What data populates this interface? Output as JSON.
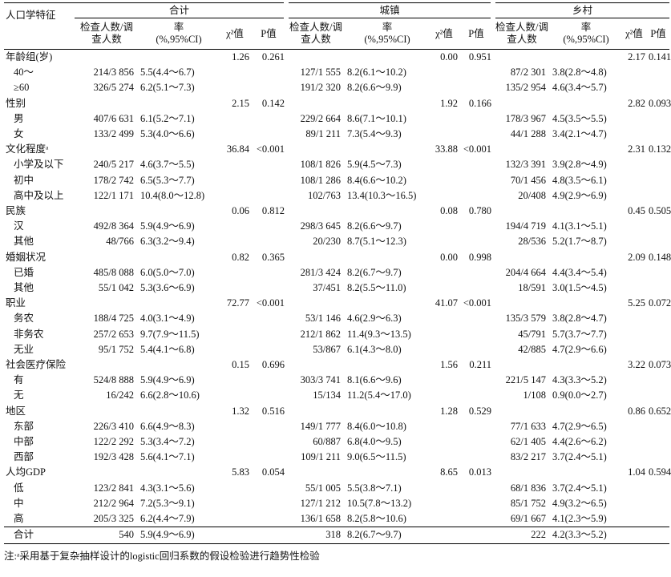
{
  "table": {
    "header": {
      "corner": "人口学特征",
      "groups": [
        "合计",
        "城镇",
        "乡村"
      ],
      "columns": [
        "检查人数/调查人数",
        [
          "率",
          "(%,95%CI)"
        ],
        "χ²值",
        "P值"
      ]
    },
    "rows": [
      [
        "年龄组(岁)",
        null,
        null,
        "1.26",
        "0.261",
        null,
        null,
        "0.00",
        "0.951",
        null,
        null,
        "2.17",
        "0.141"
      ],
      [
        "40～",
        "214/3 856",
        "5.5(4.4～6.7)",
        null,
        null,
        "127/1 555",
        "8.2(6.1～10.2)",
        null,
        null,
        "87/2 301",
        "3.8(2.8～4.8)",
        null,
        null
      ],
      [
        "≥60",
        "326/5 274",
        "6.2(5.1～7.3)",
        null,
        null,
        "191/2 320",
        "8.2(6.6～9.9)",
        null,
        null,
        "135/2 954",
        "4.6(3.4～5.7)",
        null,
        null
      ],
      [
        "性别",
        null,
        null,
        "2.15",
        "0.142",
        null,
        null,
        "1.92",
        "0.166",
        null,
        null,
        "2.82",
        "0.093"
      ],
      [
        "男",
        "407/6 631",
        "6.1(5.2～7.1)",
        null,
        null,
        "229/2 664",
        "8.6(7.1～10.1)",
        null,
        null,
        "178/3 967",
        "4.5(3.5～5.5)",
        null,
        null
      ],
      [
        "女",
        "133/2 499",
        "5.3(4.0～6.6)",
        null,
        null,
        "89/1 211",
        "7.3(5.4～9.3)",
        null,
        null,
        "44/1 288",
        "3.4(2.1～4.7)",
        null,
        null
      ],
      [
        "文化程度ᵃ",
        null,
        null,
        "36.84",
        "<0.001",
        null,
        null,
        "33.88",
        "<0.001",
        null,
        null,
        "2.31",
        "0.132"
      ],
      [
        "小学及以下",
        "240/5 217",
        "4.6(3.7～5.5)",
        null,
        null,
        "108/1 826",
        "5.9(4.5～7.3)",
        null,
        null,
        "132/3 391",
        "3.9(2.8～4.9)",
        null,
        null
      ],
      [
        "初中",
        "178/2 742",
        "6.5(5.3～7.7)",
        null,
        null,
        "108/1 286",
        "8.4(6.6～10.2)",
        null,
        null,
        "70/1 456",
        "4.8(3.5～6.1)",
        null,
        null
      ],
      [
        "高中及以上",
        "122/1 171",
        "10.4(8.0～12.8)",
        null,
        null,
        "102/763",
        "13.4(10.3～16.5)",
        null,
        null,
        "20/408",
        "4.9(2.9～6.9)",
        null,
        null
      ],
      [
        "民族",
        null,
        null,
        "0.06",
        "0.812",
        null,
        null,
        "0.08",
        "0.780",
        null,
        null,
        "0.45",
        "0.505"
      ],
      [
        "汉",
        "492/8 364",
        "5.9(4.9～6.9)",
        null,
        null,
        "298/3 645",
        "8.2(6.6～9.7)",
        null,
        null,
        "194/4 719",
        "4.1(3.1～5.1)",
        null,
        null
      ],
      [
        "其他",
        "48/766",
        "6.3(3.2～9.4)",
        null,
        null,
        "20/230",
        "8.7(5.1～12.3)",
        null,
        null,
        "28/536",
        "5.2(1.7～8.7)",
        null,
        null
      ],
      [
        "婚姻状况",
        null,
        null,
        "0.82",
        "0.365",
        null,
        null,
        "0.00",
        "0.998",
        null,
        null,
        "2.09",
        "0.148"
      ],
      [
        "已婚",
        "485/8 088",
        "6.0(5.0～7.0)",
        null,
        null,
        "281/3 424",
        "8.2(6.7～9.7)",
        null,
        null,
        "204/4 664",
        "4.4(3.4～5.4)",
        null,
        null
      ],
      [
        "其他",
        "55/1 042",
        "5.3(3.6～6.9)",
        null,
        null,
        "37/451",
        "8.2(5.5～11.0)",
        null,
        null,
        "18/591",
        "3.0(1.5～4.5)",
        null,
        null
      ],
      [
        "职业",
        null,
        null,
        "72.77",
        "<0.001",
        null,
        null,
        "41.07",
        "<0.001",
        null,
        null,
        "5.25",
        "0.072"
      ],
      [
        "务农",
        "188/4 725",
        "4.0(3.1～4.9)",
        null,
        null,
        "53/1 146",
        "4.6(2.9～6.3)",
        null,
        null,
        "135/3 579",
        "3.8(2.8～4.7)",
        null,
        null
      ],
      [
        "非务农",
        "257/2 653",
        "9.7(7.9～11.5)",
        null,
        null,
        "212/1 862",
        "11.4(9.3～13.5)",
        null,
        null,
        "45/791",
        "5.7(3.7～7.7)",
        null,
        null
      ],
      [
        "无业",
        "95/1 752",
        "5.4(4.1～6.8)",
        null,
        null,
        "53/867",
        "6.1(4.3～8.0)",
        null,
        null,
        "42/885",
        "4.7(2.9～6.6)",
        null,
        null
      ],
      [
        "社会医疗保险",
        null,
        null,
        "0.15",
        "0.696",
        null,
        null,
        "1.56",
        "0.211",
        null,
        null,
        "3.22",
        "0.073"
      ],
      [
        "有",
        "524/8 888",
        "5.9(4.9～6.9)",
        null,
        null,
        "303/3 741",
        "8.1(6.6～9.6)",
        null,
        null,
        "221/5 147",
        "4.3(3.3～5.2)",
        null,
        null
      ],
      [
        "无",
        "16/242",
        "6.6(2.8～10.6)",
        null,
        null,
        "15/134",
        "11.2(5.4～17.0)",
        null,
        null,
        "1/108",
        "0.9(0.0～2.7)",
        null,
        null
      ],
      [
        "地区",
        null,
        null,
        "1.32",
        "0.516",
        null,
        null,
        "1.28",
        "0.529",
        null,
        null,
        "0.86",
        "0.652"
      ],
      [
        "东部",
        "226/3 410",
        "6.6(4.9～8.3)",
        null,
        null,
        "149/1 777",
        "8.4(6.0～10.8)",
        null,
        null,
        "77/1 633",
        "4.7(2.9～6.5)",
        null,
        null
      ],
      [
        "中部",
        "122/2 292",
        "5.3(3.4～7.2)",
        null,
        null,
        "60/887",
        "6.8(4.0～9.5)",
        null,
        null,
        "62/1 405",
        "4.4(2.6～6.2)",
        null,
        null
      ],
      [
        "西部",
        "192/3 428",
        "5.6(4.1～7.1)",
        null,
        null,
        "109/1 211",
        "9.0(6.5～11.5)",
        null,
        null,
        "83/2 217",
        "3.7(2.4～5.1)",
        null,
        null
      ],
      [
        "人均GDP",
        null,
        null,
        "5.83",
        "0.054",
        null,
        null,
        "8.65",
        "0.013",
        null,
        null,
        "1.04",
        "0.594"
      ],
      [
        "低",
        "123/2 841",
        "4.3(3.1～5.6)",
        null,
        null,
        "55/1 005",
        "5.5(3.8～7.1)",
        null,
        null,
        "68/1 836",
        "3.7(2.4～5.1)",
        null,
        null
      ],
      [
        "中",
        "212/2 964",
        "7.2(5.3～9.1)",
        null,
        null,
        "127/1 212",
        "10.5(7.8～13.2)",
        null,
        null,
        "85/1 752",
        "4.9(3.2～6.5)",
        null,
        null
      ],
      [
        "高",
        "205/3 325",
        "6.2(4.4～7.9)",
        null,
        null,
        "136/1 658",
        "8.2(5.8～10.6)",
        null,
        null,
        "69/1 667",
        "4.1(2.3～5.9)",
        null,
        null
      ]
    ],
    "total": [
      "合计",
      "540",
      "5.9(4.9～6.9)",
      null,
      null,
      "318",
      "8.2(6.7～9.7)",
      null,
      null,
      "222",
      "4.2(3.3～5.2)",
      null,
      null
    ]
  },
  "footnote": "注:ᵃ采用基于复杂抽样设计的logistic回归系数的假设检验进行趋势性检验"
}
